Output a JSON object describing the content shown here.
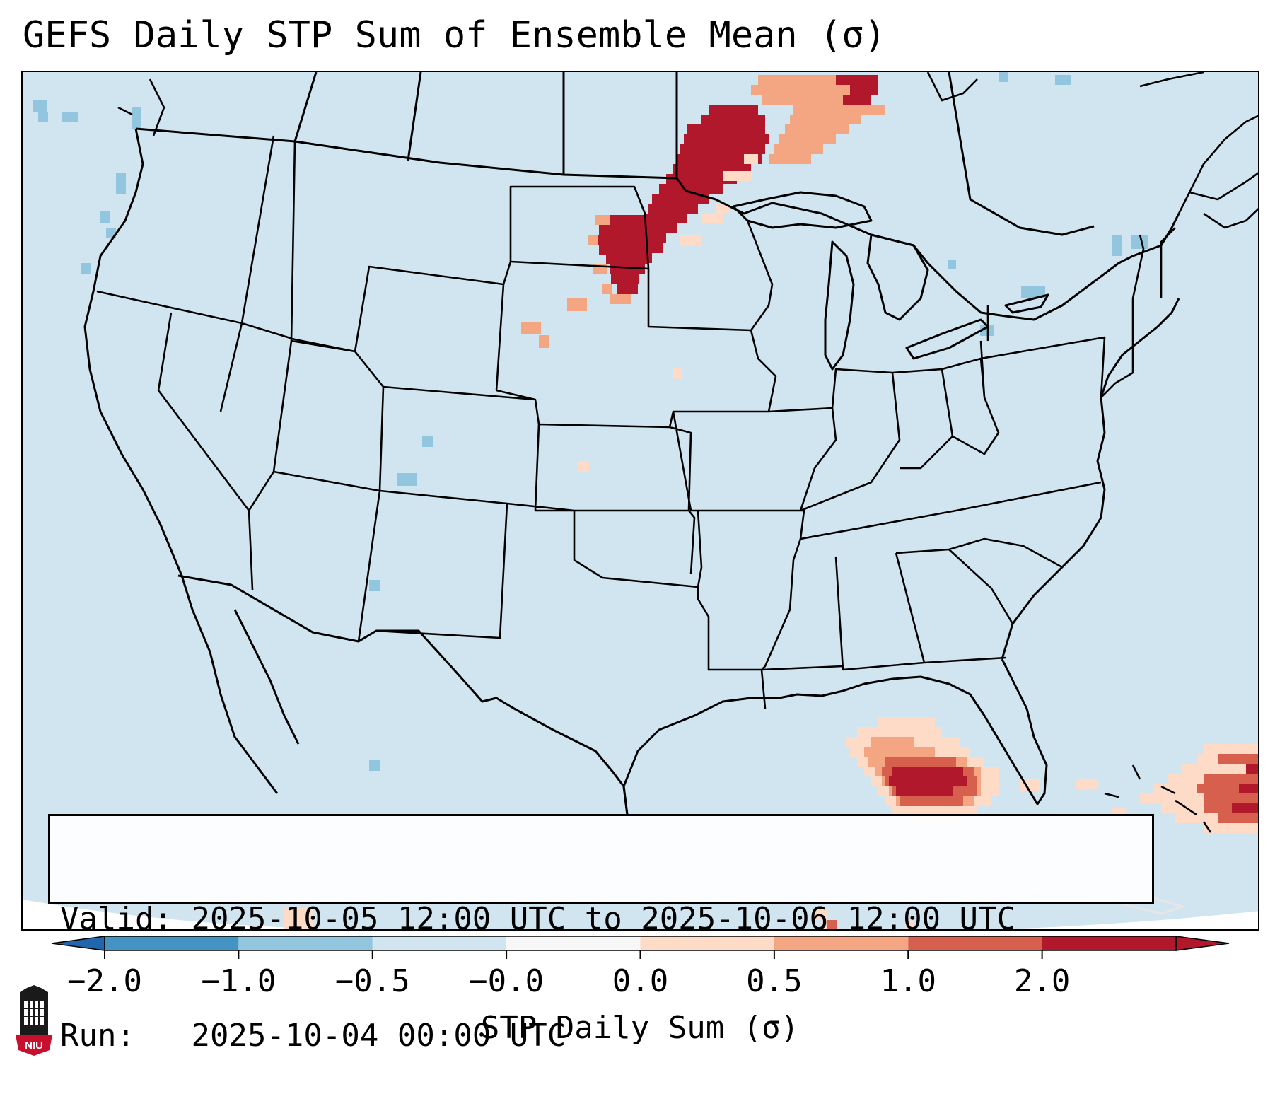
{
  "title": "GEFS Daily STP Sum of Ensemble Mean (σ)",
  "info_box": {
    "valid_label": "Valid:",
    "valid_value": "2025-10-05 12:00 UTC to 2025-10-06 12:00 UTC",
    "run_label": "Run:",
    "run_value": "2025-10-04 00:00 UTC"
  },
  "colorbar": {
    "label": "STP Daily Sum (σ)",
    "ticks": [
      "−2.0",
      "−1.0",
      "−0.5",
      "−0.0",
      "0.0",
      "0.5",
      "1.0",
      "2.0"
    ],
    "colors": [
      "#4393c3",
      "#92c5de",
      "#d1e5f0",
      "#f7f7f7",
      "#fddbc7",
      "#f4a582",
      "#d6604d",
      "#b2182b"
    ],
    "under_color": "#2166ac",
    "over_color": "#b2182b"
  },
  "map": {
    "background_color": "#d1e5f0",
    "outline_color": "#000000",
    "features": [
      "state-borders",
      "country-borders",
      "coastlines",
      "great-lakes"
    ]
  },
  "logo": {
    "text": "NIU",
    "icon": "niu-tower-logo-icon",
    "color": "#c8102e"
  }
}
